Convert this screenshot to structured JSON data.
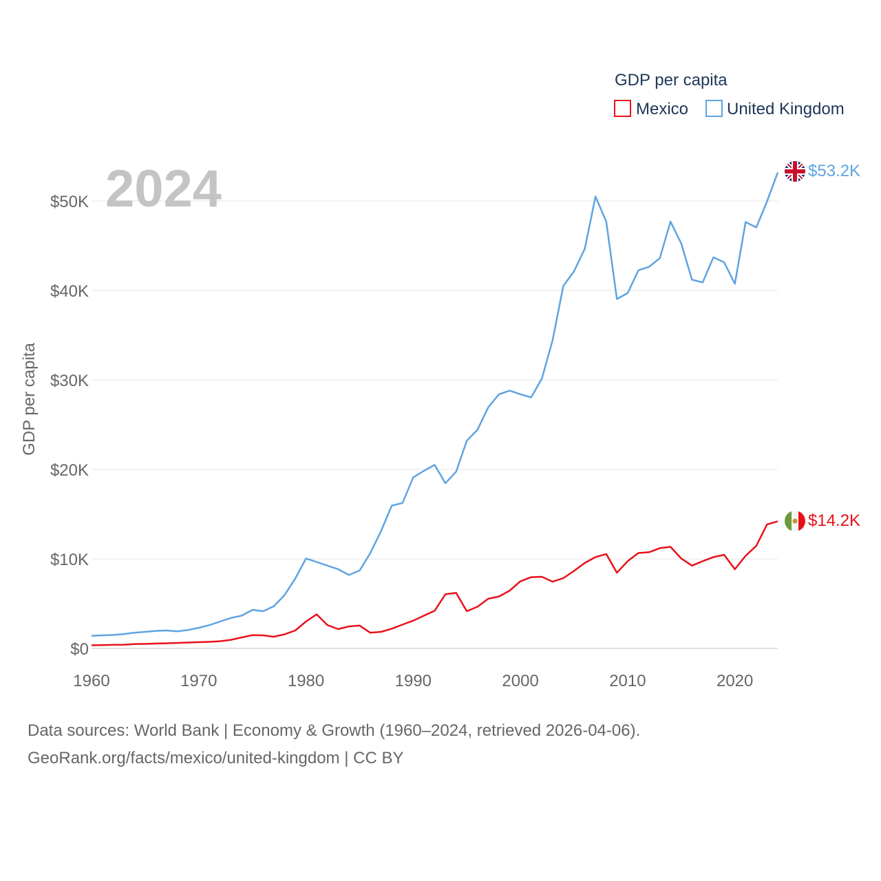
{
  "chart_data": {
    "type": "line",
    "title": "",
    "year_label": "2024",
    "xlabel": "",
    "ylabel": "GDP per capita",
    "xlim": [
      1960,
      2024
    ],
    "ylim": [
      0,
      55000
    ],
    "x_ticks": [
      1960,
      1970,
      1980,
      1990,
      2000,
      2010,
      2020
    ],
    "y_ticks": [
      {
        "value": 0,
        "label": "$0"
      },
      {
        "value": 10000,
        "label": "$10K"
      },
      {
        "value": 20000,
        "label": "$20K"
      },
      {
        "value": 30000,
        "label": "$30K"
      },
      {
        "value": 40000,
        "label": "$40K"
      },
      {
        "value": 50000,
        "label": "$50K"
      }
    ],
    "legend": {
      "title": "GDP per capita",
      "placement": "top-right"
    },
    "x": [
      1960,
      1961,
      1962,
      1963,
      1964,
      1965,
      1966,
      1967,
      1968,
      1969,
      1970,
      1971,
      1972,
      1973,
      1974,
      1975,
      1976,
      1977,
      1978,
      1979,
      1980,
      1981,
      1982,
      1983,
      1984,
      1985,
      1986,
      1987,
      1988,
      1989,
      1990,
      1991,
      1992,
      1993,
      1994,
      1995,
      1996,
      1997,
      1998,
      1999,
      2000,
      2001,
      2002,
      2003,
      2004,
      2005,
      2006,
      2007,
      2008,
      2009,
      2010,
      2011,
      2012,
      2013,
      2014,
      2015,
      2016,
      2017,
      2018,
      2019,
      2020,
      2021,
      2022,
      2023,
      2024
    ],
    "series": [
      {
        "name": "Mexico",
        "color": "#e8111a",
        "icon": "mexico-flag-icon",
        "end_label": "$14.2K",
        "values": [
          350,
          370,
          390,
          410,
          480,
          500,
          540,
          570,
          610,
          650,
          690,
          730,
          800,
          950,
          1220,
          1480,
          1450,
          1300,
          1570,
          2000,
          3000,
          3800,
          2600,
          2150,
          2450,
          2550,
          1750,
          1850,
          2200,
          2650,
          3100,
          3650,
          4200,
          6050,
          6200,
          4150,
          4650,
          5550,
          5800,
          6450,
          7500,
          7950,
          8000,
          7450,
          7850,
          8650,
          9550,
          10200,
          10550,
          8450,
          9750,
          10650,
          10750,
          11200,
          11350,
          10050,
          9250,
          9750,
          10200,
          10450,
          8850,
          10350,
          11450,
          13850,
          14200
        ]
      },
      {
        "name": "United Kingdom",
        "color": "#5fa3e0",
        "icon": "uk-flag-icon",
        "end_label": "$53.2K",
        "values": [
          1400,
          1450,
          1500,
          1600,
          1750,
          1850,
          1950,
          2000,
          1900,
          2050,
          2300,
          2600,
          3000,
          3400,
          3650,
          4300,
          4150,
          4700,
          5950,
          7800,
          10050,
          9650,
          9250,
          8850,
          8200,
          8700,
          10650,
          13100,
          15950,
          16250,
          19100,
          19850,
          20500,
          18450,
          19750,
          23200,
          24450,
          26950,
          28400,
          28800,
          28400,
          28050,
          30150,
          34450,
          40500,
          42150,
          44650,
          50500,
          47700,
          39050,
          39700,
          42250,
          42650,
          43600,
          47700,
          45250,
          41200,
          40900,
          43700,
          43150,
          40750,
          47650,
          47050,
          49950,
          53200
        ]
      }
    ]
  },
  "source_line1": "Data sources: World Bank | Economy & Growth (1960–2024, retrieved 2026-04-06).",
  "source_line2": "GeoRank.org/facts/mexico/united-kingdom | CC BY"
}
